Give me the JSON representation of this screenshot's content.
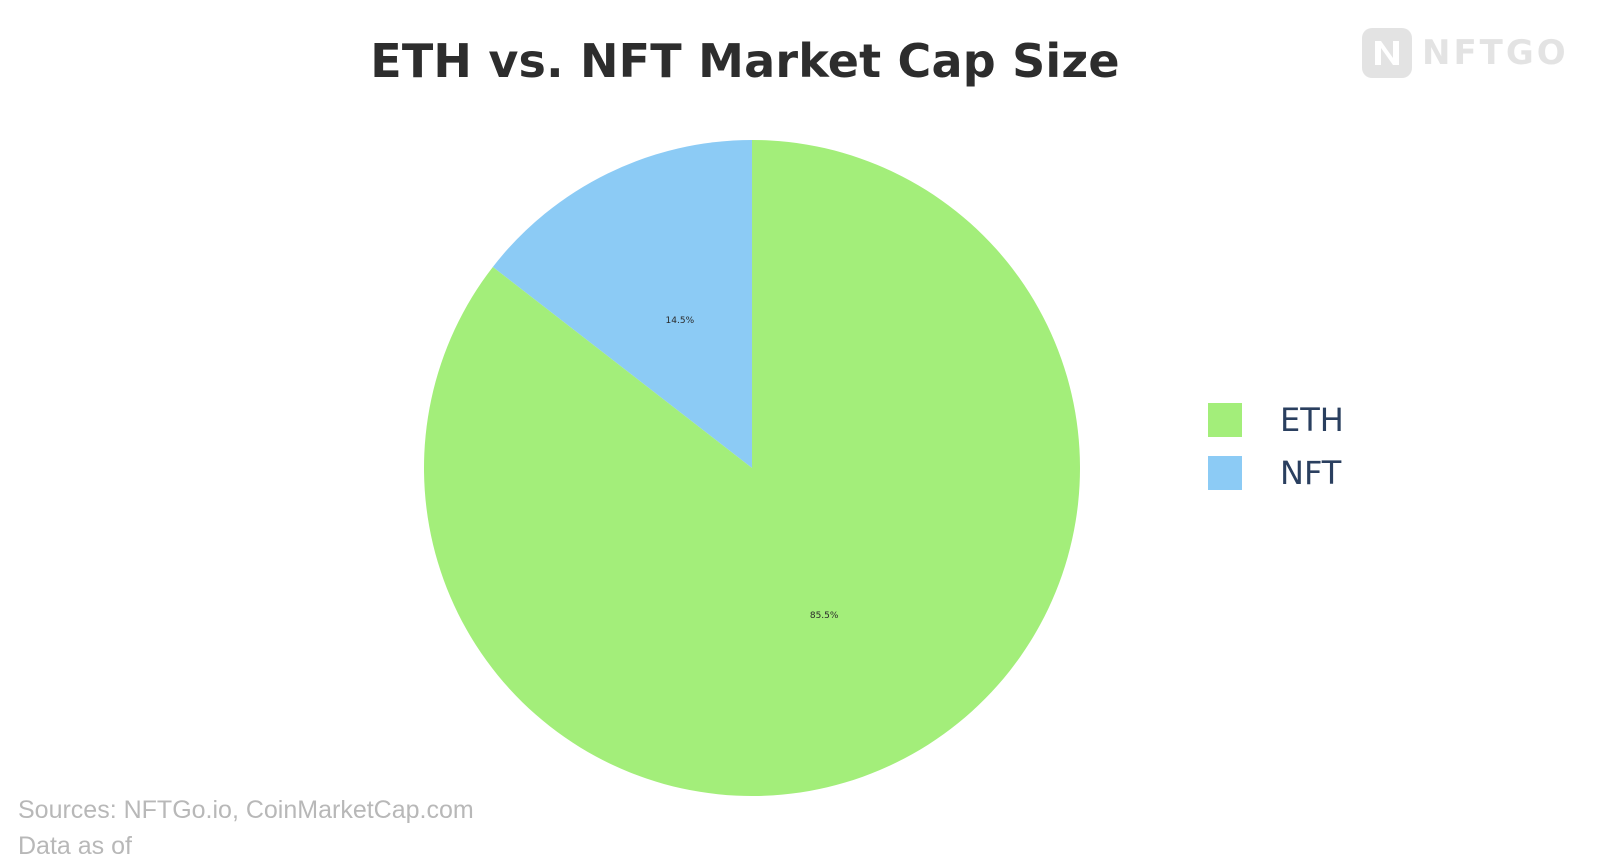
{
  "chart_data": {
    "type": "pie",
    "title": "ETH vs. NFT Market Cap Size",
    "slices": [
      {
        "name": "ETH",
        "value": 85.5,
        "label": "85.5%",
        "color": "#a3ee7a"
      },
      {
        "name": "NFT",
        "value": 14.5,
        "label": "14.5%",
        "color": "#8ccbf5"
      }
    ],
    "legend_position": "right",
    "start_angle_deg": 90,
    "direction": "counterclockwise"
  },
  "brand": {
    "logo_icon": "nftgo-logo-icon",
    "name": "NFTGO"
  },
  "footer": {
    "sources": "Sources: NFTGo.io, CoinMarketCap.com",
    "date_note": "Data as of"
  }
}
